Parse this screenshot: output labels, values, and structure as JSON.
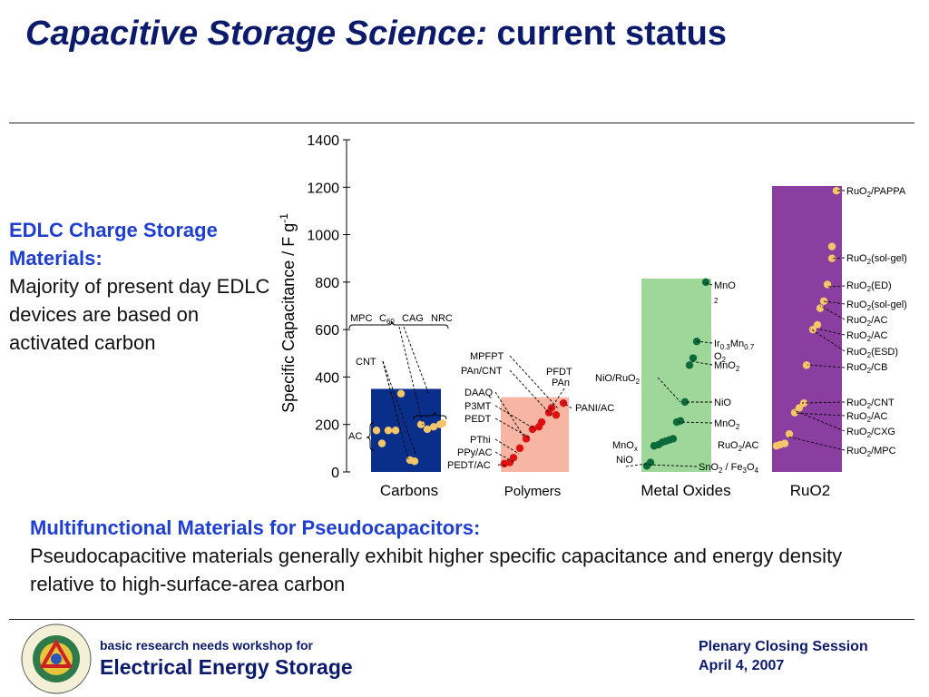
{
  "slide": {
    "title_italic": "Capacitive Storage Science:",
    "title_rest": " current status"
  },
  "edlc": {
    "head": "EDLC Charge Storage Materials:",
    "body": "Majority of present day EDLC devices are based on activated carbon"
  },
  "multi": {
    "head": "Multifunctional Materials for Pseudocapacitors:",
    "body": "Pseudocapacitive materials generally exhibit higher specific capacitance and energy density relative to high-surface-area carbon"
  },
  "footer": {
    "line1": "basic research needs workshop for",
    "line2": "Electrical Energy Storage",
    "session": "Plenary Closing Session",
    "date": "April 4, 2007"
  },
  "colors": {
    "title": "#0b1a6b",
    "accent": "#1f3fcf",
    "carbons": "#0a2f8a",
    "polymers": "#f7b6a3",
    "metal_oxides": "#9fd79a",
    "ruo2": "#8a3fa0",
    "carbon_points": "#f5c56a",
    "polymer_points": "#e01010",
    "oxide_points": "#0a6a3a",
    "ruo2_points": "#f5c56a"
  },
  "chart_data": {
    "type": "bar",
    "ylabel": "Specific Capacitance / F g-1",
    "ylim": [
      0,
      1400
    ],
    "yticks": [
      "0",
      "200",
      "400",
      "600",
      "800",
      "1000",
      "1200",
      "1400"
    ],
    "categories": [
      "Carbons",
      "Polymers",
      "Metal Oxides",
      "RuO2"
    ],
    "values": [
      350,
      315,
      815,
      1205
    ],
    "points": [
      [
        175,
        120,
        175,
        175,
        50,
        45,
        330,
        200,
        180,
        190,
        200,
        205
      ],
      [
        35,
        40,
        60,
        100,
        140,
        180,
        190,
        210,
        250,
        270,
        240,
        290
      ],
      [
        25,
        40,
        110,
        115,
        125,
        130,
        135,
        140,
        210,
        215,
        295,
        450,
        480,
        550,
        800
      ],
      [
        110,
        115,
        120,
        160,
        250,
        270,
        290,
        450,
        600,
        620,
        690,
        720,
        790,
        900,
        950,
        1185
      ]
    ],
    "annotations": {
      "carbons": [
        "CNT",
        "MPC",
        "C60",
        "CAG",
        "NRC",
        "AC"
      ],
      "polymers": [
        "MPFPT",
        "PAn/CNT",
        "PFDT",
        "PAn",
        "DAAQ",
        "P3MT",
        "PEDT",
        "PANI/AC",
        "PThi",
        "PPy/AC",
        "PEDT/AC"
      ],
      "oxides": [
        "MnO2",
        "Ir0.3Mn0.7O2",
        "MnO2",
        "NiO/RuO2",
        "NiO",
        "MnO2",
        "MnOx",
        "RuO2/AC",
        "NiO",
        "SnO2 / Fe3O4"
      ],
      "ruo2": [
        "RuO2/PAPPA",
        "RuO2(sol-gel)",
        "RuO2(ED)",
        "RuO2(sol-gel)",
        "RuO2/AC",
        "RuO2/AC",
        "RuO2(ESD)",
        "RuO2/CB",
        "RuO2/CNT",
        "RuO2/AC",
        "RuO2/CXG",
        "RuO2/MPC"
      ]
    }
  }
}
